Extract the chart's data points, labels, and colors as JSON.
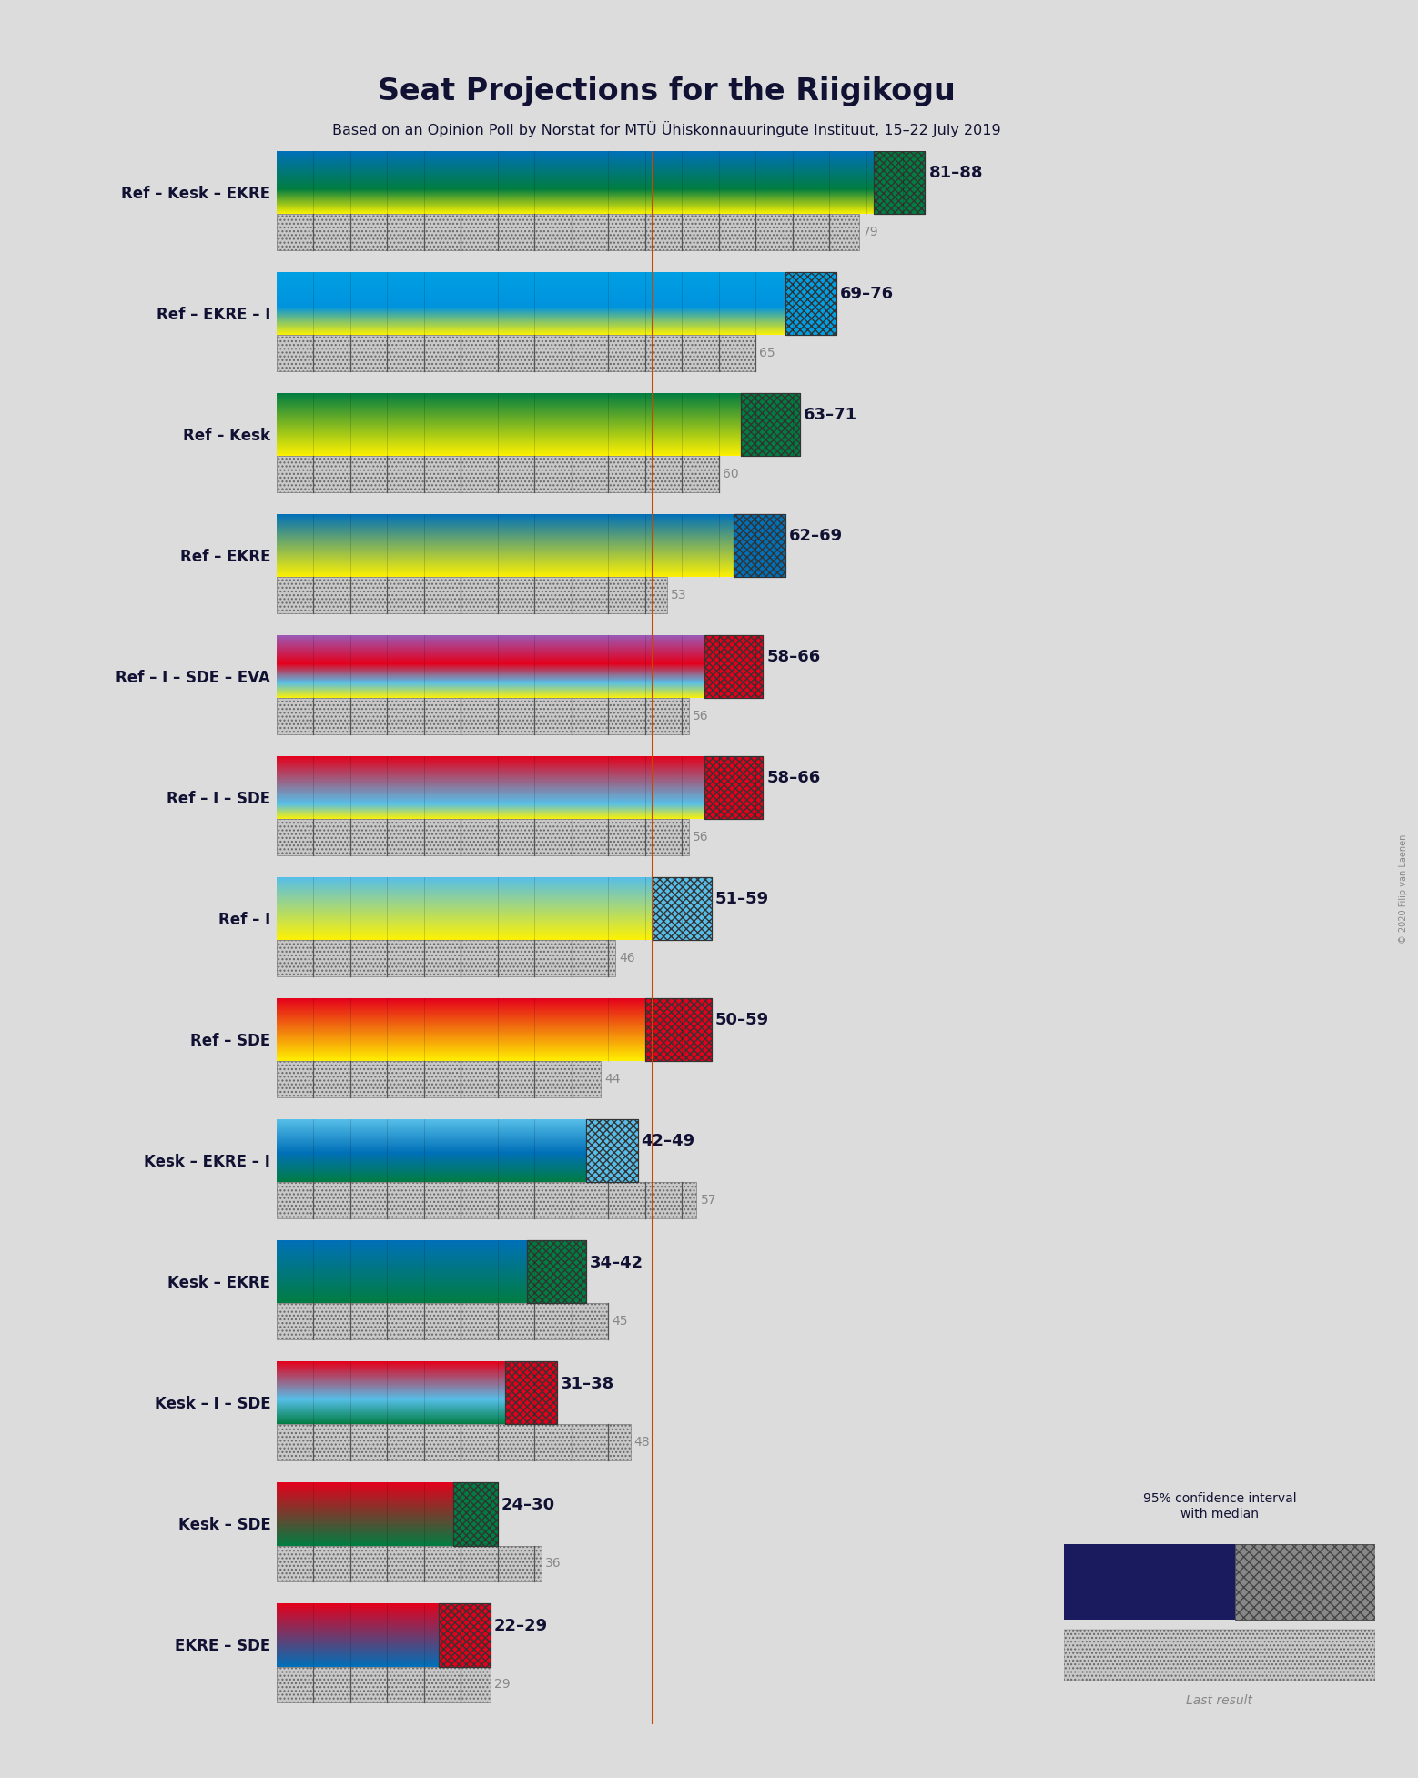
{
  "title": "Seat Projections for the Riigikogu",
  "subtitle": "Based on an Opinion Poll by Norstat for MTÜ Ühiskonnauuringute Instituut, 15–22 July 2019",
  "copyright": "© 2020 Filip van Laenen",
  "majority_line": 51,
  "xlim_seats": 101,
  "background_color": "#dcdcdc",
  "coalitions": [
    {
      "name": "Ref – Kesk – EKRE",
      "ci_low": 81,
      "ci_high": 88,
      "last_result": 79,
      "underline": false,
      "grad_colors": [
        "#FFF200",
        "#007d41",
        "#0070b8"
      ],
      "grad_stops": [
        0.0,
        0.4,
        1.0
      ],
      "ci_color1": "#007d41",
      "ci_color2": "#FFF200",
      "label_range": "81–88",
      "label_last": "79"
    },
    {
      "name": "Ref – EKRE – I",
      "ci_low": 69,
      "ci_high": 76,
      "last_result": 65,
      "underline": false,
      "grad_colors": [
        "#FFF200",
        "#0093dd",
        "#009FE3"
      ],
      "grad_stops": [
        0.0,
        0.45,
        1.0
      ],
      "ci_color1": "#009FE3",
      "ci_color2": "#FFF200",
      "label_range": "69–76",
      "label_last": "65"
    },
    {
      "name": "Ref – Kesk",
      "ci_low": 63,
      "ci_high": 71,
      "last_result": 60,
      "underline": false,
      "grad_colors": [
        "#FFF200",
        "#007d41"
      ],
      "grad_stops": [
        0.0,
        1.0
      ],
      "ci_color1": "#007d41",
      "ci_color2": "#FFF200",
      "label_range": "63–71",
      "label_last": "60"
    },
    {
      "name": "Ref – EKRE",
      "ci_low": 62,
      "ci_high": 69,
      "last_result": 53,
      "underline": false,
      "grad_colors": [
        "#FFF200",
        "#0070b8"
      ],
      "grad_stops": [
        0.0,
        1.0
      ],
      "ci_color1": "#0070b8",
      "ci_color2": "#FFF200",
      "label_range": "62–69",
      "label_last": "53"
    },
    {
      "name": "Ref – I – SDE – EVA",
      "ci_low": 58,
      "ci_high": 66,
      "last_result": 56,
      "underline": false,
      "grad_colors": [
        "#FFF200",
        "#56BEE8",
        "#E4001B",
        "#9b59b6"
      ],
      "grad_stops": [
        0.0,
        0.25,
        0.55,
        1.0
      ],
      "ci_color1": "#E4001B",
      "ci_color2": "#FFF200",
      "label_range": "58–66",
      "label_last": "56"
    },
    {
      "name": "Ref – I – SDE",
      "ci_low": 58,
      "ci_high": 66,
      "last_result": 56,
      "underline": false,
      "grad_colors": [
        "#FFF200",
        "#56BEE8",
        "#E4001B"
      ],
      "grad_stops": [
        0.0,
        0.25,
        1.0
      ],
      "ci_color1": "#E4001B",
      "ci_color2": "#FFF200",
      "label_range": "58–66",
      "label_last": "56"
    },
    {
      "name": "Ref – I",
      "ci_low": 51,
      "ci_high": 59,
      "last_result": 46,
      "underline": false,
      "grad_colors": [
        "#FFF200",
        "#56BEE8"
      ],
      "grad_stops": [
        0.0,
        1.0
      ],
      "ci_color1": "#56BEE8",
      "ci_color2": "#FFF200",
      "label_range": "51–59",
      "label_last": "46"
    },
    {
      "name": "Ref – SDE",
      "ci_low": 50,
      "ci_high": 59,
      "last_result": 44,
      "underline": false,
      "grad_colors": [
        "#FFF200",
        "#E4001B"
      ],
      "grad_stops": [
        0.0,
        1.0
      ],
      "ci_color1": "#E4001B",
      "ci_color2": "#FFF200",
      "label_range": "50–59",
      "label_last": "44"
    },
    {
      "name": "Kesk – EKRE – I",
      "ci_low": 42,
      "ci_high": 49,
      "last_result": 57,
      "underline": true,
      "grad_colors": [
        "#007d41",
        "#0070b8",
        "#56BEE8"
      ],
      "grad_stops": [
        0.0,
        0.47,
        1.0
      ],
      "ci_color1": "#56BEE8",
      "ci_color2": "#007d41",
      "label_range": "42–49",
      "label_last": "57"
    },
    {
      "name": "Kesk – EKRE",
      "ci_low": 34,
      "ci_high": 42,
      "last_result": 45,
      "underline": false,
      "grad_colors": [
        "#007d41",
        "#0070b8"
      ],
      "grad_stops": [
        0.0,
        1.0
      ],
      "ci_color1": "#007d41",
      "ci_color2": "#0070b8",
      "label_range": "34–42",
      "label_last": "45"
    },
    {
      "name": "Kesk – I – SDE",
      "ci_low": 31,
      "ci_high": 38,
      "last_result": 48,
      "underline": false,
      "grad_colors": [
        "#007d41",
        "#56BEE8",
        "#E4001B"
      ],
      "grad_stops": [
        0.0,
        0.4,
        1.0
      ],
      "ci_color1": "#E4001B",
      "ci_color2": "#007d41",
      "label_range": "31–38",
      "label_last": "48"
    },
    {
      "name": "Kesk – SDE",
      "ci_low": 24,
      "ci_high": 30,
      "last_result": 36,
      "underline": false,
      "grad_colors": [
        "#007d41",
        "#E4001B"
      ],
      "grad_stops": [
        0.0,
        1.0
      ],
      "ci_color1": "#007d41",
      "ci_color2": "#E4001B",
      "label_range": "24–30",
      "label_last": "36"
    },
    {
      "name": "EKRE – SDE",
      "ci_low": 22,
      "ci_high": 29,
      "last_result": 29,
      "underline": false,
      "grad_colors": [
        "#0070b8",
        "#E4001B"
      ],
      "grad_stops": [
        0.0,
        1.0
      ],
      "ci_color1": "#E4001B",
      "ci_color2": "#0070b8",
      "label_range": "22–29",
      "label_last": "29"
    }
  ],
  "legend": {
    "ci_dark_color": "#1a1a5e",
    "ci_hatch_color": "#c0c0c0",
    "lr_color": "#b0b0b0",
    "text_ci": "95% confidence interval\nwith median",
    "text_lr": "Last result"
  }
}
